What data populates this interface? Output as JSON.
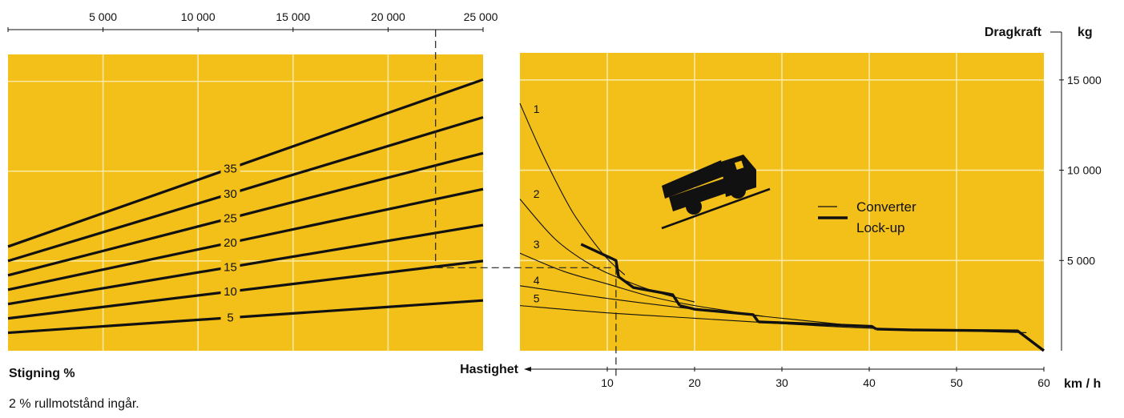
{
  "colors": {
    "panel": "#f3bf19",
    "grid": "#fbe9a3",
    "ink": "#111111",
    "guide": "#222222"
  },
  "footnote": "2 % rullmotstånd ingår.",
  "chart_data": [
    {
      "type": "line",
      "name": "left-panel",
      "xlabel": "Stigning %",
      "x_ticks": [
        5000,
        10000,
        15000,
        20000,
        25000
      ],
      "x_tick_labels": [
        "5 000",
        "10 000",
        "15 000",
        "20 000",
        "25 000"
      ],
      "xlim": [
        0,
        25000
      ],
      "ylim": [
        0,
        16500
      ],
      "series": [
        {
          "name": "35",
          "label": "35",
          "x": [
            0,
            25000
          ],
          "y": [
            5800,
            15100
          ]
        },
        {
          "name": "30",
          "label": "30",
          "x": [
            0,
            25000
          ],
          "y": [
            5000,
            13000
          ]
        },
        {
          "name": "25",
          "label": "25",
          "x": [
            0,
            25000
          ],
          "y": [
            4200,
            11000
          ]
        },
        {
          "name": "20",
          "label": "20",
          "x": [
            0,
            25000
          ],
          "y": [
            3400,
            9000
          ]
        },
        {
          "name": "15",
          "label": "15",
          "x": [
            0,
            25000
          ],
          "y": [
            2600,
            7000
          ]
        },
        {
          "name": "10",
          "label": "10",
          "x": [
            0,
            25000
          ],
          "y": [
            1800,
            5000
          ]
        },
        {
          "name": "5",
          "label": "5",
          "x": [
            0,
            25000
          ],
          "y": [
            1000,
            2800
          ]
        }
      ],
      "example_weight": 22500
    },
    {
      "type": "line",
      "name": "right-panel",
      "xlabel": "Hastighet",
      "ylabel": "Dragkraft",
      "x_unit": "km / h",
      "y_unit": "kg",
      "x_ticks": [
        10,
        20,
        30,
        40,
        50,
        60
      ],
      "x_tick_labels": [
        "10",
        "20",
        "30",
        "40",
        "50",
        "60"
      ],
      "y_ticks": [
        5000,
        10000,
        15000
      ],
      "y_tick_labels": [
        "5 000",
        "10 000",
        "15 000"
      ],
      "xlim": [
        0,
        60
      ],
      "ylim": [
        0,
        16500
      ],
      "legend": {
        "converter": "Converter",
        "lockup": "Lock-up"
      },
      "gear_labels": [
        "1",
        "2",
        "3",
        "4",
        "5"
      ],
      "converter_series": [
        {
          "name": "1",
          "x": [
            0,
            2,
            4,
            6,
            8,
            10,
            12
          ],
          "y": [
            13700,
            11500,
            9500,
            7700,
            6300,
            5100,
            4200
          ]
        },
        {
          "name": "2",
          "x": [
            0,
            4,
            8,
            12,
            16,
            20
          ],
          "y": [
            8400,
            6200,
            4800,
            3900,
            3200,
            2700
          ]
        },
        {
          "name": "3",
          "x": [
            0,
            5,
            10,
            15,
            20,
            28
          ],
          "y": [
            5400,
            4400,
            3700,
            3000,
            2500,
            1900
          ]
        },
        {
          "name": "4",
          "x": [
            0,
            10,
            20,
            30,
            40
          ],
          "y": [
            3600,
            2900,
            2300,
            1800,
            1300
          ]
        },
        {
          "name": "5",
          "x": [
            0,
            10,
            20,
            30,
            40,
            58
          ],
          "y": [
            2500,
            2100,
            1800,
            1500,
            1250,
            1000
          ]
        }
      ],
      "lockup_series": [
        {
          "name": "1",
          "x": [
            7,
            11,
            11.3
          ],
          "y": [
            5900,
            5000,
            4100
          ]
        },
        {
          "name": "2",
          "x": [
            11.3,
            13,
            17.5,
            18.3
          ],
          "y": [
            4100,
            3500,
            3100,
            2500
          ]
        },
        {
          "name": "3",
          "x": [
            18.3,
            20,
            26.7,
            27.3
          ],
          "y": [
            2500,
            2300,
            2000,
            1600
          ]
        },
        {
          "name": "4",
          "x": [
            27.3,
            30,
            40.3,
            40.8
          ],
          "y": [
            1600,
            1550,
            1350,
            1200
          ]
        },
        {
          "name": "5",
          "x": [
            40.8,
            45,
            57,
            60
          ],
          "y": [
            1200,
            1150,
            1100,
            0
          ]
        }
      ],
      "example_speed": 11,
      "example_force": 4600
    }
  ]
}
